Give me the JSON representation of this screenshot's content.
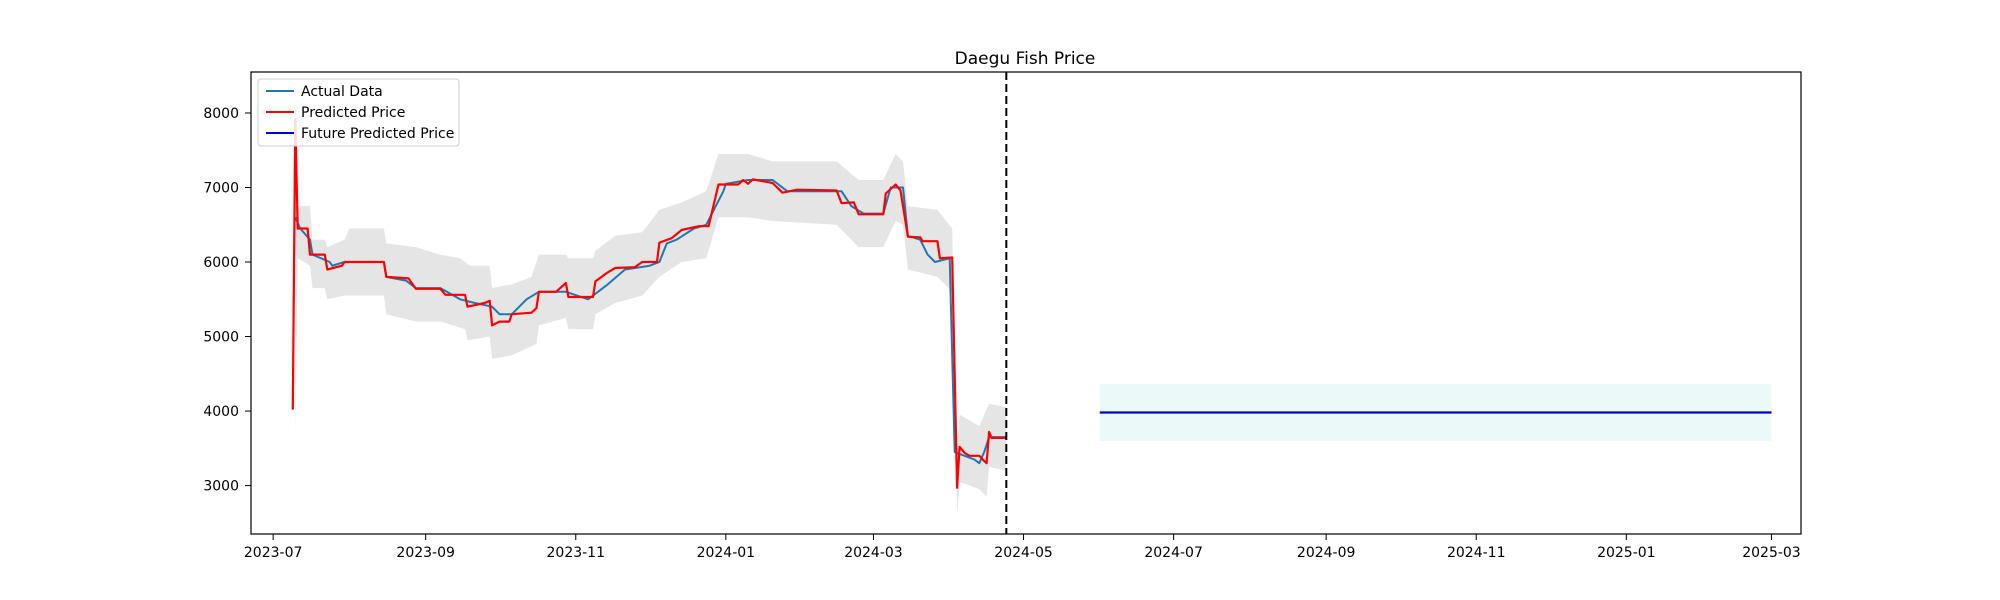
{
  "chart_data": {
    "type": "line",
    "title": "Daegu Fish Price",
    "xlabel": "",
    "ylabel": "",
    "x_range": [
      "2023-06-22",
      "2025-03-13"
    ],
    "ylim": [
      2350,
      8550
    ],
    "x_ticks": [
      "2023-07-01",
      "2023-09-01",
      "2023-11-01",
      "2024-01-01",
      "2024-03-01",
      "2024-05-01",
      "2024-07-01",
      "2024-09-01",
      "2024-11-01",
      "2025-01-01",
      "2025-03-01"
    ],
    "x_tick_labels": [
      "2023-07",
      "2023-09",
      "2023-11",
      "2024-01",
      "2024-03",
      "2024-05",
      "2024-07",
      "2024-09",
      "2024-11",
      "2025-01",
      "2025-03"
    ],
    "y_ticks": [
      3000,
      4000,
      5000,
      6000,
      7000,
      8000
    ],
    "y_tick_labels": [
      "3000",
      "4000",
      "5000",
      "6000",
      "7000",
      "8000"
    ],
    "grid": false,
    "legend_position": "top-left",
    "forecast_start_marker": "2024-04-24",
    "series": [
      {
        "name": "Actual Data",
        "color": "#1f77b4",
        "points": [
          [
            "2023-07-10",
            6600
          ],
          [
            "2023-07-12",
            6450
          ],
          [
            "2023-07-16",
            6300
          ],
          [
            "2023-07-17",
            6100
          ],
          [
            "2023-07-24",
            6000
          ],
          [
            "2023-07-25",
            5950
          ],
          [
            "2023-07-30",
            6000
          ],
          [
            "2023-08-01",
            6000
          ],
          [
            "2023-08-15",
            6000
          ],
          [
            "2023-08-16",
            5800
          ],
          [
            "2023-08-24",
            5750
          ],
          [
            "2023-08-28",
            5650
          ],
          [
            "2023-09-07",
            5650
          ],
          [
            "2023-09-15",
            5500
          ],
          [
            "2023-09-21",
            5450
          ],
          [
            "2023-09-28",
            5400
          ],
          [
            "2023-10-01",
            5300
          ],
          [
            "2023-10-06",
            5300
          ],
          [
            "2023-10-12",
            5500
          ],
          [
            "2023-10-17",
            5600
          ],
          [
            "2023-10-28",
            5600
          ],
          [
            "2023-11-06",
            5500
          ],
          [
            "2023-11-14",
            5700
          ],
          [
            "2023-11-21",
            5900
          ],
          [
            "2023-12-01",
            5950
          ],
          [
            "2023-12-05",
            6000
          ],
          [
            "2023-12-08",
            6250
          ],
          [
            "2023-12-12",
            6300
          ],
          [
            "2023-12-19",
            6450
          ],
          [
            "2023-12-24",
            6500
          ],
          [
            "2023-12-31",
            6950
          ],
          [
            "2024-01-01",
            7050
          ],
          [
            "2024-01-10",
            7100
          ],
          [
            "2024-01-20",
            7100
          ],
          [
            "2024-01-26",
            6950
          ],
          [
            "2024-02-01",
            6950
          ],
          [
            "2024-02-17",
            6950
          ],
          [
            "2024-02-21",
            6750
          ],
          [
            "2024-02-26",
            6650
          ],
          [
            "2024-03-05",
            6650
          ],
          [
            "2024-03-08",
            7000
          ],
          [
            "2024-03-13",
            7000
          ],
          [
            "2024-03-15",
            6350
          ],
          [
            "2024-03-20",
            6300
          ],
          [
            "2024-03-23",
            6100
          ],
          [
            "2024-03-26",
            6000
          ],
          [
            "2024-04-01",
            6050
          ],
          [
            "2024-04-03",
            3450
          ],
          [
            "2024-04-07",
            3400
          ],
          [
            "2024-04-11",
            3350
          ],
          [
            "2024-04-13",
            3300
          ],
          [
            "2024-04-15",
            3450
          ],
          [
            "2024-04-17",
            3650
          ],
          [
            "2024-04-24",
            3650
          ]
        ]
      },
      {
        "name": "Predicted Price",
        "color": "#ff0000",
        "points": [
          [
            "2023-07-09",
            4020
          ],
          [
            "2023-07-10",
            7920
          ],
          [
            "2023-07-11",
            6450
          ],
          [
            "2023-07-15",
            6450
          ],
          [
            "2023-07-16",
            6100
          ],
          [
            "2023-07-22",
            6100
          ],
          [
            "2023-07-23",
            5900
          ],
          [
            "2023-07-29",
            5950
          ],
          [
            "2023-07-30",
            6000
          ],
          [
            "2023-08-15",
            6000
          ],
          [
            "2023-08-16",
            5800
          ],
          [
            "2023-08-25",
            5780
          ],
          [
            "2023-08-28",
            5640
          ],
          [
            "2023-09-07",
            5640
          ],
          [
            "2023-09-09",
            5560
          ],
          [
            "2023-09-17",
            5560
          ],
          [
            "2023-09-18",
            5400
          ],
          [
            "2023-09-25",
            5450
          ],
          [
            "2023-09-27",
            5480
          ],
          [
            "2023-09-28",
            5150
          ],
          [
            "2023-10-01",
            5200
          ],
          [
            "2023-10-05",
            5200
          ],
          [
            "2023-10-06",
            5300
          ],
          [
            "2023-10-14",
            5320
          ],
          [
            "2023-10-16",
            5380
          ],
          [
            "2023-10-17",
            5600
          ],
          [
            "2023-10-24",
            5600
          ],
          [
            "2023-10-28",
            5720
          ],
          [
            "2023-10-29",
            5530
          ],
          [
            "2023-11-08",
            5530
          ],
          [
            "2023-11-09",
            5740
          ],
          [
            "2023-11-14",
            5860
          ],
          [
            "2023-11-17",
            5920
          ],
          [
            "2023-11-25",
            5930
          ],
          [
            "2023-11-28",
            6000
          ],
          [
            "2023-12-04",
            6000
          ],
          [
            "2023-12-05",
            6260
          ],
          [
            "2023-12-10",
            6320
          ],
          [
            "2023-12-14",
            6430
          ],
          [
            "2023-12-21",
            6480
          ],
          [
            "2023-12-24",
            6480
          ],
          [
            "2023-12-25",
            6480
          ],
          [
            "2023-12-29",
            7040
          ],
          [
            "2024-01-06",
            7040
          ],
          [
            "2024-01-08",
            7100
          ],
          [
            "2024-01-10",
            7050
          ],
          [
            "2024-01-12",
            7110
          ],
          [
            "2024-01-20",
            7060
          ],
          [
            "2024-01-24",
            6930
          ],
          [
            "2024-01-30",
            6970
          ],
          [
            "2024-02-15",
            6960
          ],
          [
            "2024-02-17",
            6790
          ],
          [
            "2024-02-22",
            6800
          ],
          [
            "2024-02-24",
            6640
          ],
          [
            "2024-03-05",
            6640
          ],
          [
            "2024-03-06",
            6920
          ],
          [
            "2024-03-10",
            7040
          ],
          [
            "2024-03-12",
            6960
          ],
          [
            "2024-03-15",
            6340
          ],
          [
            "2024-03-20",
            6330
          ],
          [
            "2024-03-21",
            6280
          ],
          [
            "2024-03-27",
            6280
          ],
          [
            "2024-03-28",
            6050
          ],
          [
            "2024-04-02",
            6060
          ],
          [
            "2024-04-04",
            2970
          ],
          [
            "2024-04-05",
            3520
          ],
          [
            "2024-04-07",
            3440
          ],
          [
            "2024-04-09",
            3400
          ],
          [
            "2024-04-13",
            3400
          ],
          [
            "2024-04-15",
            3330
          ],
          [
            "2024-04-16",
            3300
          ],
          [
            "2024-04-17",
            3720
          ],
          [
            "2024-04-18",
            3640
          ],
          [
            "2024-04-24",
            3640
          ]
        ]
      },
      {
        "name": "Future Predicted Price",
        "color": "#0000cd",
        "points": [
          [
            "2024-06-01",
            3980
          ],
          [
            "2025-03-01",
            3980
          ]
        ]
      }
    ],
    "bands": [
      {
        "of": "Predicted Price",
        "color": "#d3d3d3",
        "upper": [
          [
            "2023-07-10",
            6750
          ],
          [
            "2023-07-16",
            6750
          ],
          [
            "2023-07-17",
            6300
          ],
          [
            "2023-07-22",
            6300
          ],
          [
            "2023-07-23",
            6200
          ],
          [
            "2023-07-30",
            6300
          ],
          [
            "2023-08-01",
            6450
          ],
          [
            "2023-08-15",
            6450
          ],
          [
            "2023-08-16",
            6250
          ],
          [
            "2023-08-28",
            6200
          ],
          [
            "2023-09-07",
            6100
          ],
          [
            "2023-09-15",
            6050
          ],
          [
            "2023-09-19",
            5950
          ],
          [
            "2023-09-27",
            5950
          ],
          [
            "2023-09-28",
            5650
          ],
          [
            "2023-10-06",
            5700
          ],
          [
            "2023-10-14",
            5800
          ],
          [
            "2023-10-17",
            6100
          ],
          [
            "2023-10-28",
            6100
          ],
          [
            "2023-10-29",
            6050
          ],
          [
            "2023-11-08",
            6050
          ],
          [
            "2023-11-09",
            6150
          ],
          [
            "2023-11-17",
            6350
          ],
          [
            "2023-11-28",
            6400
          ],
          [
            "2023-12-05",
            6700
          ],
          [
            "2023-12-14",
            6800
          ],
          [
            "2023-12-24",
            6950
          ],
          [
            "2023-12-29",
            7450
          ],
          [
            "2024-01-10",
            7450
          ],
          [
            "2024-01-20",
            7350
          ],
          [
            "2024-02-15",
            7350
          ],
          [
            "2024-02-24",
            7100
          ],
          [
            "2024-03-05",
            7100
          ],
          [
            "2024-03-10",
            7450
          ],
          [
            "2024-03-13",
            7350
          ],
          [
            "2024-03-15",
            6750
          ],
          [
            "2024-03-27",
            6700
          ],
          [
            "2024-04-02",
            6450
          ],
          [
            "2024-04-04",
            3600
          ],
          [
            "2024-04-05",
            3950
          ],
          [
            "2024-04-13",
            3800
          ],
          [
            "2024-04-17",
            4100
          ],
          [
            "2024-04-24",
            4050
          ]
        ],
        "lower": [
          [
            "2023-07-10",
            3700
          ],
          [
            "2023-07-11",
            6050
          ],
          [
            "2023-07-16",
            5950
          ],
          [
            "2023-07-17",
            5650
          ],
          [
            "2023-07-22",
            5650
          ],
          [
            "2023-07-23",
            5500
          ],
          [
            "2023-07-30",
            5550
          ],
          [
            "2023-08-15",
            5550
          ],
          [
            "2023-08-16",
            5300
          ],
          [
            "2023-08-28",
            5200
          ],
          [
            "2023-09-07",
            5200
          ],
          [
            "2023-09-17",
            5100
          ],
          [
            "2023-09-18",
            4950
          ],
          [
            "2023-09-27",
            5000
          ],
          [
            "2023-09-28",
            4700
          ],
          [
            "2023-10-06",
            4750
          ],
          [
            "2023-10-16",
            4900
          ],
          [
            "2023-10-17",
            5150
          ],
          [
            "2023-10-28",
            5250
          ],
          [
            "2023-10-29",
            5100
          ],
          [
            "2023-11-08",
            5100
          ],
          [
            "2023-11-09",
            5300
          ],
          [
            "2023-11-17",
            5450
          ],
          [
            "2023-11-28",
            5550
          ],
          [
            "2023-12-05",
            5800
          ],
          [
            "2023-12-14",
            6000
          ],
          [
            "2023-12-24",
            6050
          ],
          [
            "2023-12-29",
            6600
          ],
          [
            "2024-01-10",
            6600
          ],
          [
            "2024-01-20",
            6550
          ],
          [
            "2024-02-15",
            6500
          ],
          [
            "2024-02-24",
            6200
          ],
          [
            "2024-03-05",
            6200
          ],
          [
            "2024-03-10",
            6550
          ],
          [
            "2024-03-13",
            6500
          ],
          [
            "2024-03-15",
            5900
          ],
          [
            "2024-03-27",
            5800
          ],
          [
            "2024-04-02",
            5600
          ],
          [
            "2024-04-04",
            2600
          ],
          [
            "2024-04-05",
            3050
          ],
          [
            "2024-04-13",
            2950
          ],
          [
            "2024-04-16",
            2850
          ],
          [
            "2024-04-17",
            3250
          ],
          [
            "2024-04-24",
            3200
          ]
        ]
      },
      {
        "of": "Future Predicted Price",
        "color": "#e0f5f5",
        "upper": [
          [
            "2024-06-01",
            4360
          ],
          [
            "2025-03-01",
            4360
          ]
        ],
        "lower": [
          [
            "2024-06-01",
            3600
          ],
          [
            "2025-03-01",
            3600
          ]
        ]
      }
    ]
  }
}
